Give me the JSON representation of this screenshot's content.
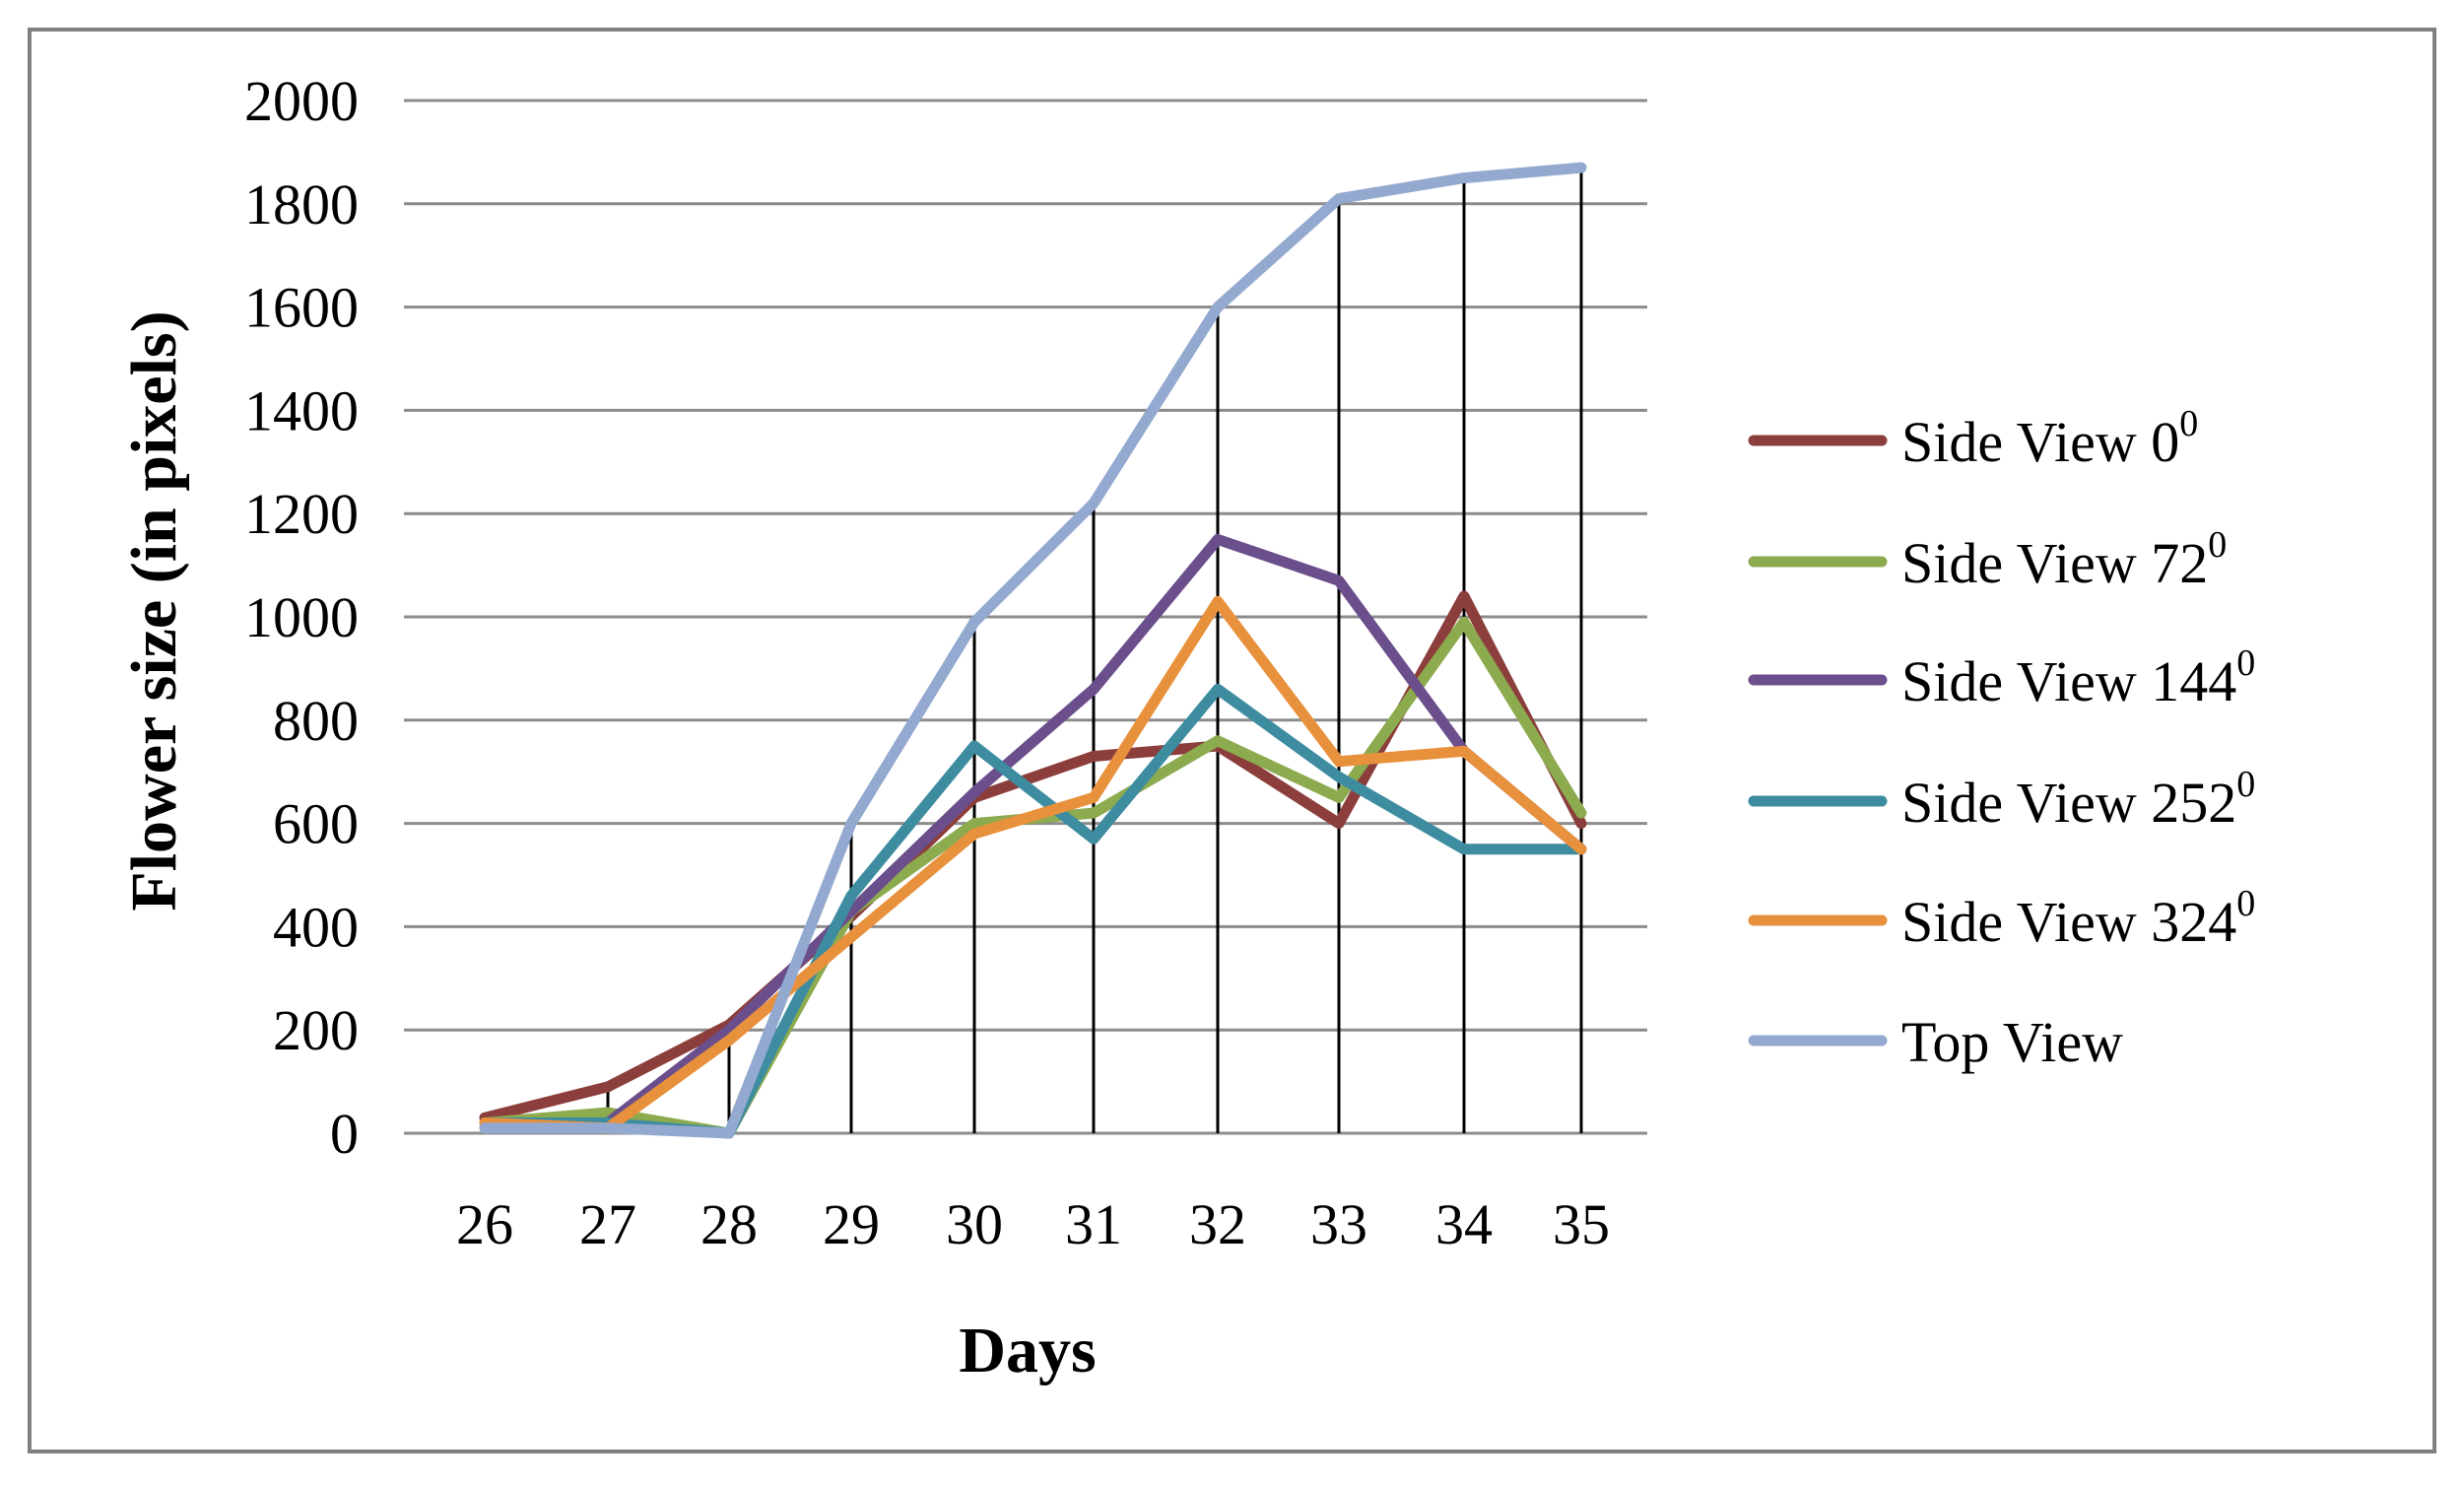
{
  "chart_data": {
    "type": "line",
    "title": "",
    "xlabel": "Days",
    "ylabel": "Flower size (in pixels)",
    "ylim": [
      0,
      2000
    ],
    "yticks": [
      "0",
      "200",
      "400",
      "600",
      "800",
      "1000",
      "1200",
      "1400",
      "1600",
      "1800",
      "2000"
    ],
    "ytick_values": [
      0,
      200,
      400,
      600,
      800,
      1000,
      1200,
      1400,
      1600,
      1800,
      2000
    ],
    "categories": [
      "26",
      "27",
      "28",
      "29",
      "30",
      "31",
      "32",
      "33",
      "34",
      "35"
    ],
    "grid": true,
    "legend_position": "right",
    "series": [
      {
        "name": "Side View 0",
        "sup": "0",
        "color": "#8B3E3B",
        "values": [
          30,
          90,
          210,
          420,
          650,
          730,
          750,
          600,
          1040,
          600
        ]
      },
      {
        "name": "Side View 72",
        "sup": "0",
        "color": "#8CAA4E",
        "values": [
          20,
          40,
          0,
          430,
          600,
          620,
          760,
          650,
          990,
          620
        ]
      },
      {
        "name": "Side View 144",
        "sup": "0",
        "color": "#6B4F8C",
        "values": [
          20,
          20,
          200,
          430,
          660,
          860,
          1150,
          1070,
          740,
          550
        ]
      },
      {
        "name": "Side View 252",
        "sup": "0",
        "color": "#3E8CA0",
        "values": [
          20,
          20,
          0,
          460,
          750,
          570,
          860,
          690,
          550,
          550
        ]
      },
      {
        "name": "Side View 324",
        "sup": "0",
        "color": "#E8913D",
        "values": [
          20,
          10,
          180,
          380,
          580,
          650,
          1030,
          720,
          740,
          550
        ]
      },
      {
        "name": "Top View",
        "sup": "",
        "color": "#93A9CF",
        "values": [
          10,
          10,
          0,
          600,
          990,
          1220,
          1600,
          1810,
          1850,
          1870
        ]
      }
    ]
  }
}
